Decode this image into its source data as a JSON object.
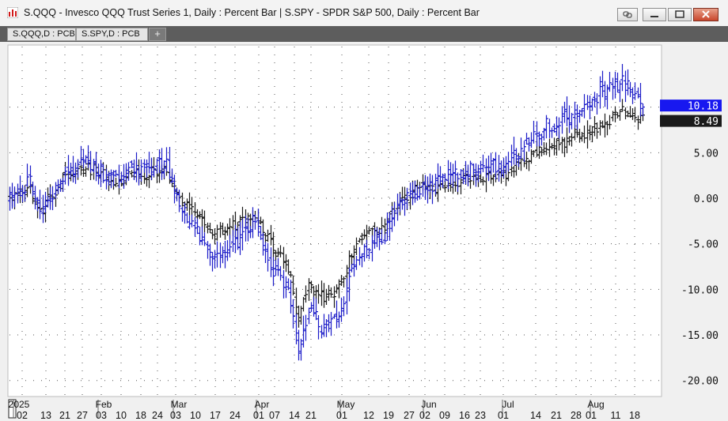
{
  "window": {
    "title": "S.QQQ - Invesco QQQ Trust Series 1, Daily : Percent Bar   |   S.SPY - SPDR S&P 500, Daily : Percent Bar"
  },
  "tabs": [
    {
      "label": "S.QQQ,D : PCB"
    },
    {
      "label": "S.SPY,D : PCB"
    }
  ],
  "tab_add_label": "+",
  "colors": {
    "qqq": "#1c1cc8",
    "spy": "#1a1a1a",
    "qqq_label_bg": "#1818f0",
    "spy_label_bg": "#1a1a1a",
    "grid": "#555555"
  },
  "chart_data": {
    "type": "bar",
    "ylabel": "",
    "ylim": [
      -21.5,
      15
    ],
    "y_ticks": [
      "10.00",
      "5.00",
      "0.00",
      "-5.00",
      "-10.00",
      "-15.00",
      "-20.00"
    ],
    "y_tick_values": [
      10,
      5,
      0,
      -5,
      -10,
      -15,
      -20
    ],
    "last_value_labels": [
      {
        "series": "S.QQQ",
        "text": "10.18",
        "value": 10.18
      },
      {
        "series": "S.SPY",
        "text": "8.49",
        "value": 8.49
      }
    ],
    "month_labels": [
      "2025",
      "Feb",
      "Mar",
      "Apr",
      "May",
      "Jun",
      "Jul",
      "Aug"
    ],
    "day_labels": [
      "02",
      "13",
      "21",
      "27",
      "03",
      "10",
      "18",
      "24",
      "03",
      "10",
      "17",
      "24",
      "01",
      "07",
      "14",
      "21",
      "01",
      "12",
      "19",
      "27",
      "02",
      "09",
      "16",
      "23",
      "01",
      "14",
      "21",
      "28",
      "01",
      "11",
      "18"
    ],
    "series": [
      {
        "name": "S.QQQ",
        "anchors": [
          [
            0,
            0
          ],
          [
            8,
            2
          ],
          [
            12,
            -2
          ],
          [
            22,
            2.5
          ],
          [
            30,
            4
          ],
          [
            44,
            1.5
          ],
          [
            48,
            3
          ],
          [
            58,
            3.5
          ],
          [
            62,
            3.5
          ],
          [
            68,
            -1
          ],
          [
            74,
            -3.5
          ],
          [
            80,
            -6.5
          ],
          [
            88,
            -5.5
          ],
          [
            96,
            -2.5
          ],
          [
            104,
            -8
          ],
          [
            110,
            -9.5
          ],
          [
            114,
            -17
          ],
          [
            118,
            -12
          ],
          [
            124,
            -14.5
          ],
          [
            130,
            -13
          ],
          [
            136,
            -7
          ],
          [
            142,
            -5.5
          ],
          [
            148,
            -4
          ],
          [
            154,
            0
          ],
          [
            162,
            1
          ],
          [
            170,
            2
          ],
          [
            180,
            3
          ],
          [
            186,
            3.5
          ],
          [
            196,
            3.5
          ],
          [
            202,
            5.5
          ],
          [
            212,
            8
          ],
          [
            218,
            8.5
          ],
          [
            226,
            10
          ],
          [
            230,
            11
          ],
          [
            236,
            12
          ],
          [
            242,
            13
          ],
          [
            246,
            11.5
          ],
          [
            250,
            10
          ]
        ]
      },
      {
        "name": "S.SPY",
        "anchors": [
          [
            0,
            0
          ],
          [
            8,
            1
          ],
          [
            12,
            -1.5
          ],
          [
            22,
            2.5
          ],
          [
            30,
            3.5
          ],
          [
            44,
            1.5
          ],
          [
            48,
            2.5
          ],
          [
            58,
            3
          ],
          [
            62,
            3
          ],
          [
            68,
            -0.5
          ],
          [
            74,
            -2
          ],
          [
            80,
            -4
          ],
          [
            88,
            -3
          ],
          [
            96,
            -1.5
          ],
          [
            104,
            -5.5
          ],
          [
            110,
            -7.5
          ],
          [
            114,
            -13.5
          ],
          [
            118,
            -9
          ],
          [
            124,
            -11
          ],
          [
            130,
            -10
          ],
          [
            136,
            -5.5
          ],
          [
            142,
            -4
          ],
          [
            148,
            -3
          ],
          [
            154,
            0
          ],
          [
            162,
            1
          ],
          [
            170,
            1
          ],
          [
            180,
            2
          ],
          [
            186,
            2.5
          ],
          [
            196,
            2.5
          ],
          [
            202,
            4
          ],
          [
            212,
            5.5
          ],
          [
            218,
            6
          ],
          [
            226,
            7
          ],
          [
            230,
            7.5
          ],
          [
            236,
            8.5
          ],
          [
            242,
            9.5
          ],
          [
            246,
            9
          ],
          [
            250,
            8.5
          ]
        ]
      }
    ]
  }
}
